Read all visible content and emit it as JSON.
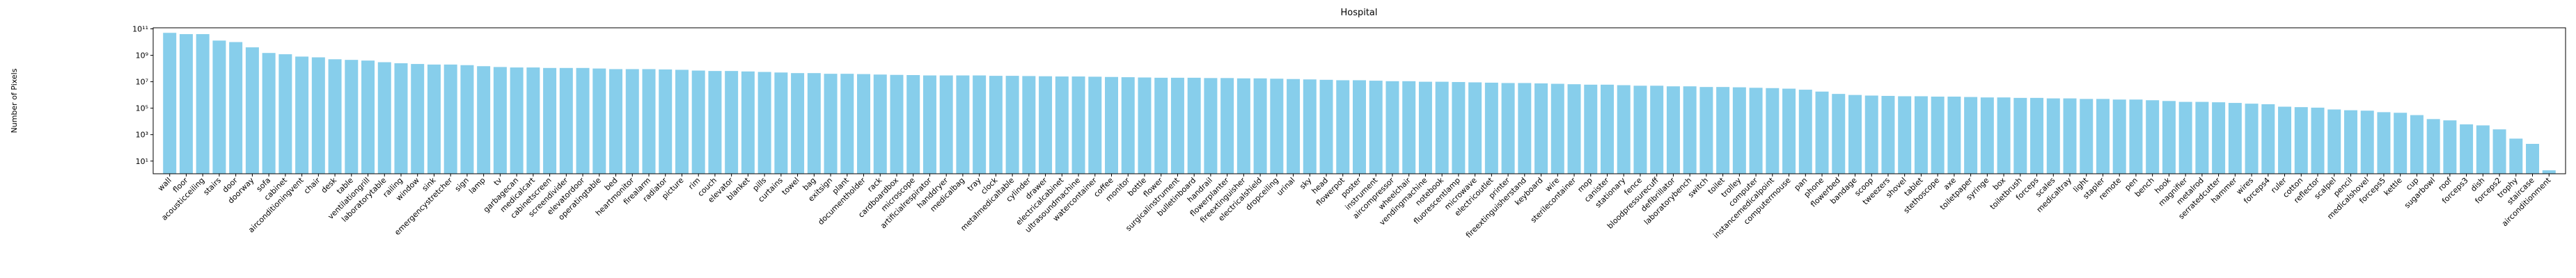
{
  "chart_data": {
    "type": "bar",
    "title": "Hospital",
    "y_label": "Number of Pixels",
    "color": "#87ceeb",
    "log_scale": true,
    "categories": [
      "wall",
      "floor",
      "acousticceiling",
      "stairs",
      "door",
      "doorway",
      "sofa",
      "cabinet",
      "airconditioningvent",
      "chair",
      "desk",
      "table",
      "ventilationgrill",
      "laboratorytable",
      "railing",
      "window",
      "sink",
      "emergencystretcher",
      "sign",
      "lamp",
      "tv",
      "garbagecan",
      "medicalcart",
      "cabinetscreen",
      "screendivider",
      "elevatordoor",
      "operatingtable",
      "bed",
      "heartmonitor",
      "firealarm",
      "radiator",
      "picture",
      "rim",
      "couch",
      "elevator",
      "blanket",
      "pills",
      "curtains",
      "towel",
      "bag",
      "exitsign",
      "plant",
      "documentholder",
      "rack",
      "cardboardbox",
      "microscope",
      "artificialrespirator",
      "handdryer",
      "medicalbag",
      "tray",
      "clock",
      "metalmedicaltable",
      "cylinder",
      "drawer",
      "electricalcabinet",
      "ultrasoundmachine",
      "watercontainer",
      "coffee",
      "monitor",
      "bottle",
      "flower",
      "surgicalinstrument",
      "bulletinboard",
      "handrail",
      "flowerplanter",
      "fireextinguisher",
      "electricalshield",
      "dropceiling",
      "urinal",
      "sky",
      "head",
      "flowerpot",
      "poster",
      "instrument",
      "aircompressor",
      "wheelchair",
      "vendingmachine",
      "notebook",
      "fluorescentlamp",
      "microwave",
      "electricoutlet",
      "printer",
      "fireextinguisherstand",
      "keyboard",
      "wire",
      "sterilecontainer",
      "mop",
      "canister",
      "stationary",
      "fence",
      "bloodpressurecuff",
      "defibrillator",
      "laboratorybench",
      "switch",
      "toilet",
      "trolley",
      "computer",
      "instancemedicalpoint",
      "computermouse",
      "pan",
      "phone",
      "flowerbed",
      "bandage",
      "scoop",
      "tweezers",
      "shovel",
      "tablet",
      "stethoscope",
      "axe",
      "toiletpaper",
      "syringe",
      "box",
      "toiletbrush",
      "forceps",
      "scales",
      "medicaltray",
      "light",
      "stapler",
      "remote",
      "pen",
      "bench",
      "hook",
      "magnifier",
      "metalrod",
      "serratedcutter",
      "hammer",
      "wires",
      "forceps4",
      "ruler",
      "cotton",
      "reflector",
      "scalpel",
      "pencil",
      "medicalshovel",
      "forceps5",
      "kettle",
      "cup",
      "sugarbowl",
      "roof",
      "forceps3",
      "dish",
      "forceps2",
      "trophy",
      "staircase",
      "airconditionment"
    ],
    "values": [
      50000000000.0,
      40000000000.0,
      40000000000.0,
      13000000000.0,
      10000000000.0,
      4000000000.0,
      1500000000.0,
      1200000000.0,
      800000000.0,
      700000000.0,
      500000000.0,
      450000000.0,
      400000000.0,
      300000000.0,
      250000000.0,
      220000000.0,
      200000000.0,
      200000000.0,
      180000000.0,
      150000000.0,
      130000000.0,
      120000000.0,
      120000000.0,
      110000000.0,
      110000000.0,
      110000000.0,
      100000000.0,
      90000000.0,
      90000000.0,
      90000000.0,
      85000000.0,
      80000000.0,
      70000000.0,
      65000000.0,
      65000000.0,
      60000000.0,
      55000000.0,
      50000000.0,
      45000000.0,
      45000000.0,
      40000000.0,
      40000000.0,
      38000000.0,
      35000000.0,
      33000000.0,
      32000000.0,
      30000000.0,
      30000000.0,
      30000000.0,
      30000000.0,
      28000000.0,
      28000000.0,
      27000000.0,
      26000000.0,
      25000000.0,
      25000000.0,
      24000000.0,
      23000000.0,
      22000000.0,
      21000000.0,
      20000000.0,
      20000000.0,
      20000000.0,
      19000000.0,
      19000000.0,
      18000000.0,
      18000000.0,
      17000000.0,
      16000000.0,
      15000000.0,
      14000000.0,
      13000000.0,
      13000000.0,
      12000000.0,
      11000000.0,
      11000000.0,
      10000000.0,
      10000000.0,
      9500000.0,
      9000000.0,
      8500000.0,
      8000000.0,
      8000000.0,
      7500000.0,
      7000000.0,
      6500000.0,
      6000000.0,
      6000000.0,
      5500000.0,
      5000000.0,
      5000000.0,
      4500000.0,
      4500000.0,
      4000000.0,
      4000000.0,
      3800000.0,
      3500000.0,
      3300000.0,
      3000000.0,
      2500000.0,
      1800000.0,
      1200000.0,
      1000000.0,
      900000.0,
      850000.0,
      800000.0,
      800000.0,
      750000.0,
      750000.0,
      700000.0,
      650000.0,
      650000.0,
      600000.0,
      600000.0,
      550000.0,
      550000.0,
      500000.0,
      500000.0,
      450000.0,
      450000.0,
      400000.0,
      350000.0,
      300000.0,
      300000.0,
      280000.0,
      250000.0,
      220000.0,
      200000.0,
      130000.0,
      120000.0,
      110000.0,
      80000.0,
      70000.0,
      65000.0,
      50000.0,
      45000.0,
      30000.0,
      15000.0,
      12000.0,
      6000,
      5000,
      2500,
      500,
      200,
      2
    ],
    "ylim": [
      1.1,
      120000000000.0
    ],
    "yticks": [
      {
        "value": 10,
        "label": "10¹"
      },
      {
        "value": 1000,
        "label": "10³"
      },
      {
        "value": 100000,
        "label": "10⁵"
      },
      {
        "value": 10000000,
        "label": "10⁷"
      },
      {
        "value": 1000000000,
        "label": "10⁹"
      },
      {
        "value": 100000000000,
        "label": "10¹¹"
      }
    ]
  }
}
